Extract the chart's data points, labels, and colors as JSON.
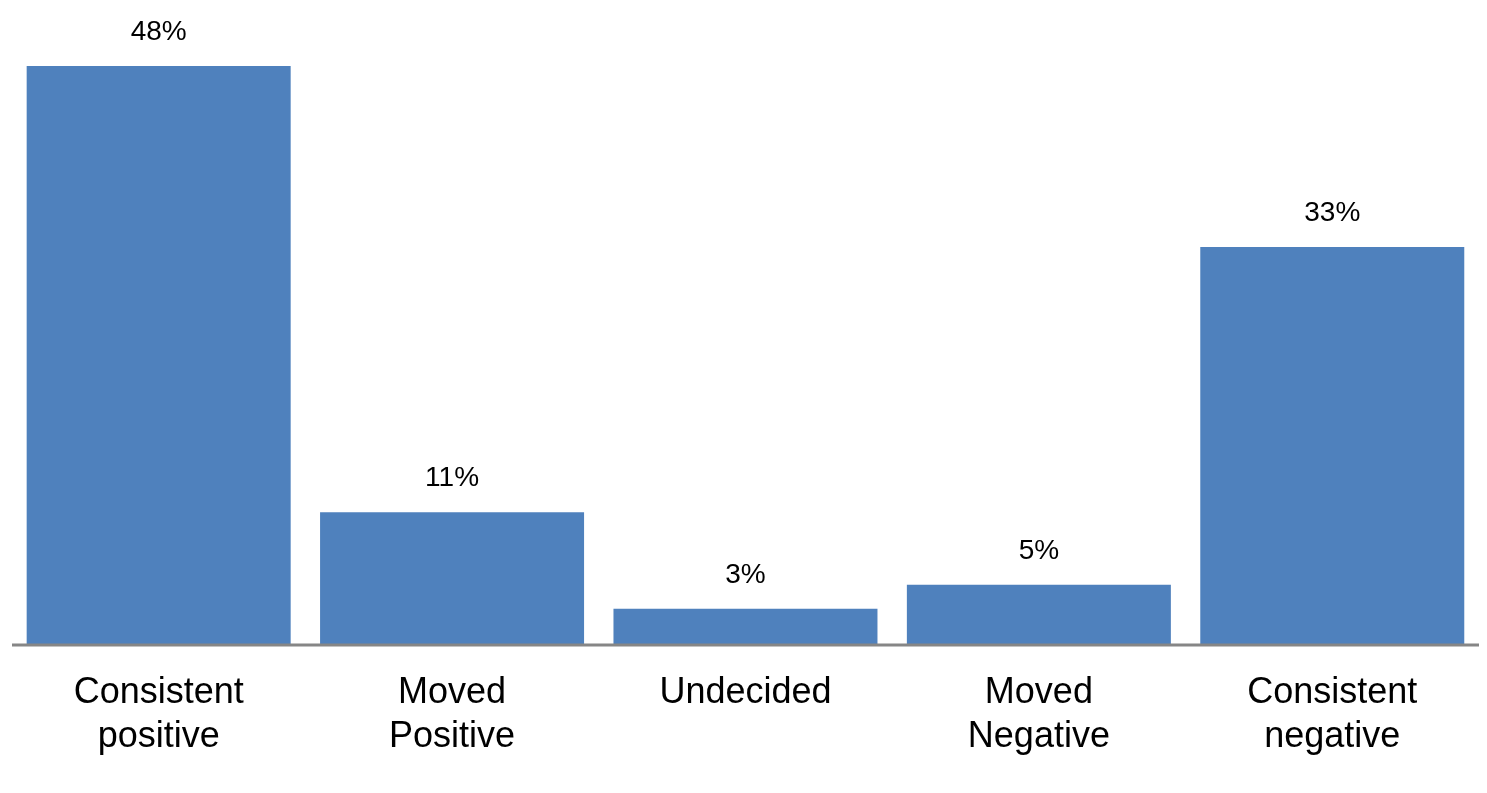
{
  "chart_data": {
    "type": "bar",
    "categories": [
      "Consistent positive",
      "Moved Positive",
      "Undecided",
      "Moved Negative",
      "Consistent negative"
    ],
    "values": [
      48,
      11,
      3,
      5,
      33
    ],
    "value_labels": [
      "48%",
      "11%",
      "3%",
      "5%",
      "33%"
    ],
    "color": "#4f81bd",
    "grid": false,
    "legend": false
  }
}
